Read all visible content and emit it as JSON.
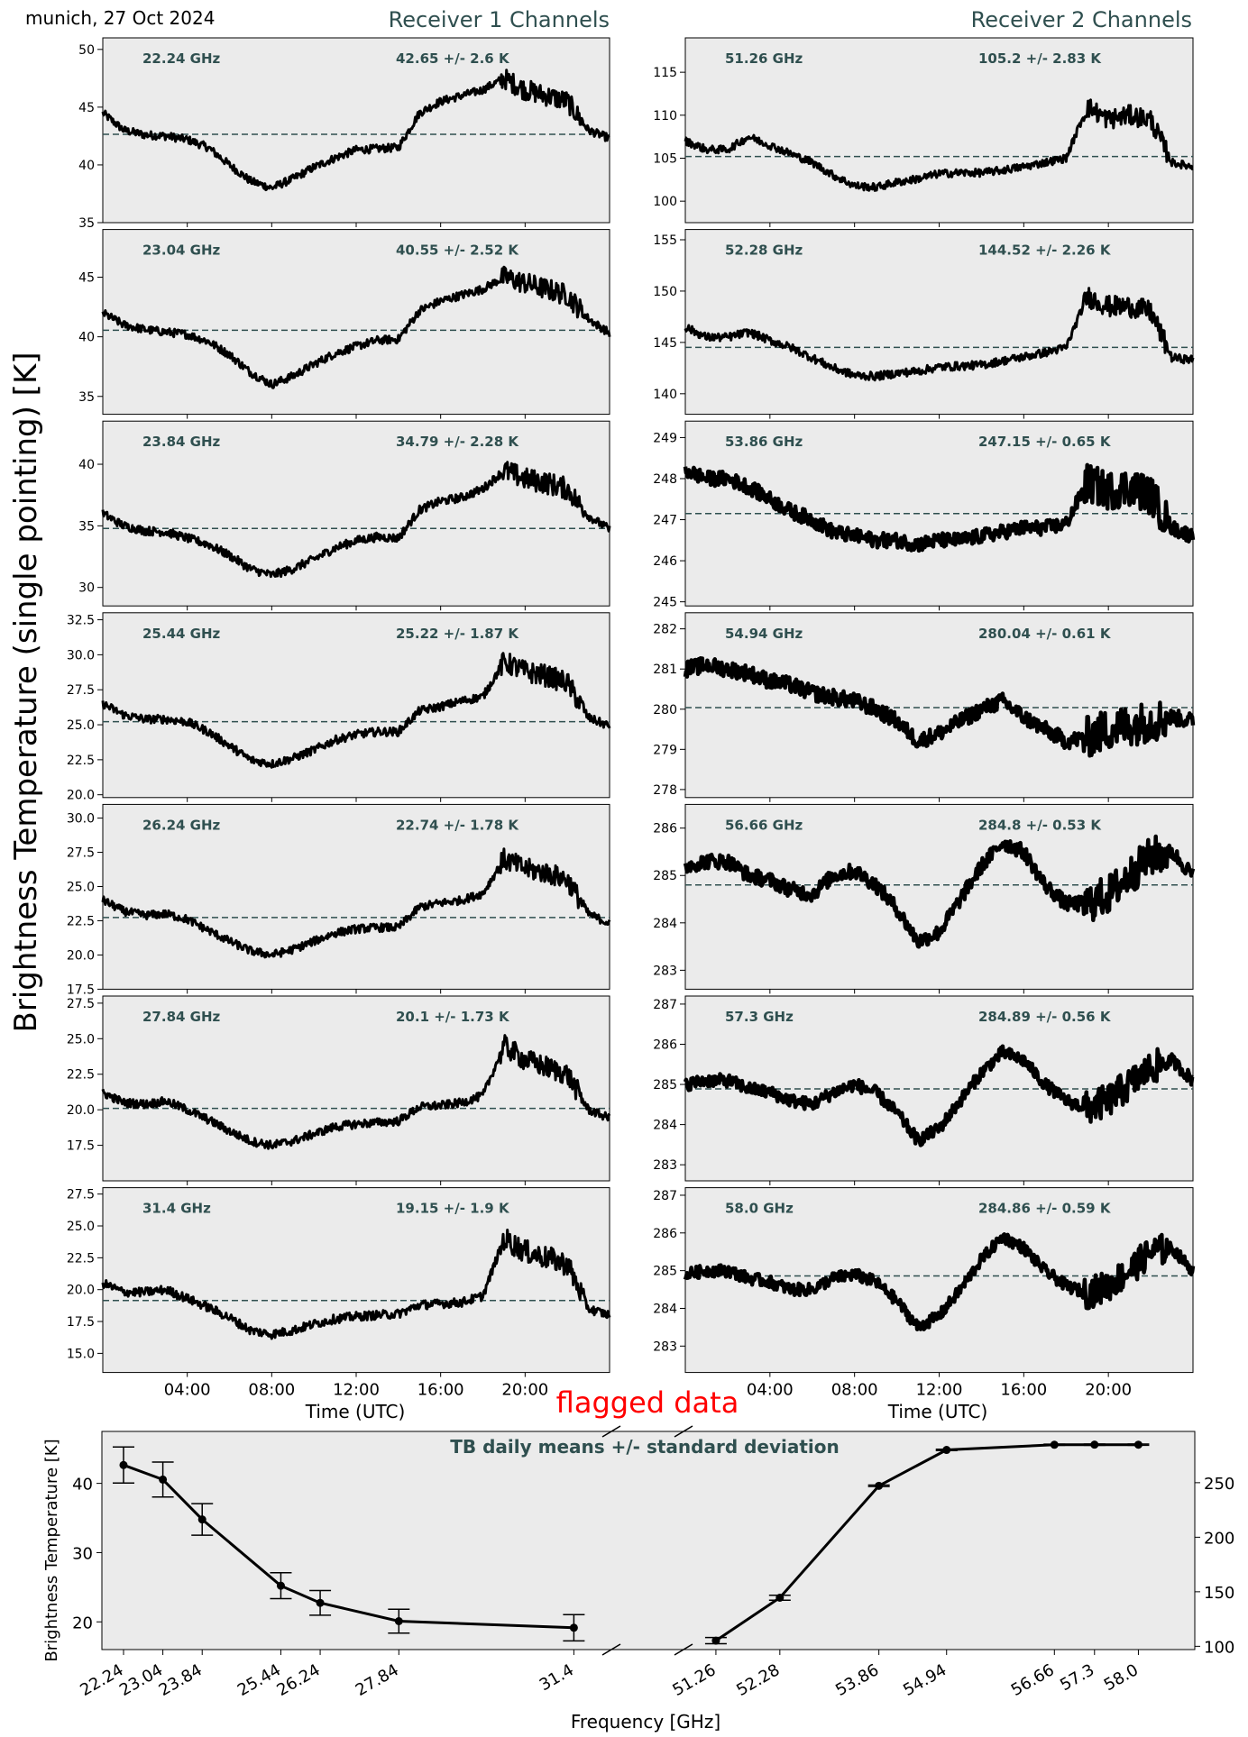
{
  "header": {
    "location_date": "munich, 27 Oct 2024",
    "receiver1_title": "Receiver 1 Channels",
    "receiver2_title": "Receiver 2 Channels"
  },
  "labels": {
    "y_axis_main": "Brightness Temperature (single pointing) [K]",
    "x_axis_time": "Time (UTC)",
    "flagged": "flagged data",
    "summary_title": "TB daily means +/- standard deviation",
    "summary_ylabel": "Brightness Temperature [K]",
    "summary_xlabel": "Frequency [GHz]"
  },
  "colors": {
    "panel_background": "#ebebeb",
    "text_accent": "#2f4f4f",
    "flag": "#ff0000",
    "series": "#000000"
  },
  "chart_data": [
    {
      "type": "line",
      "title": "Receiver 1 Channels",
      "xlabel": "Time (UTC)",
      "ylabel": "Brightness Temperature (single pointing) [K]",
      "x_ticks": [
        "04:00",
        "08:00",
        "12:00",
        "16:00",
        "20:00"
      ],
      "xlim_hours": [
        0,
        24
      ],
      "panels": [
        {
          "freq": "22.24 GHz",
          "stat": "42.65 +/- 2.6 K",
          "mean": 42.65,
          "ylim": [
            35,
            51
          ],
          "yticks": [
            35,
            40,
            45,
            50
          ],
          "ytick_labels": [
            "35",
            "40",
            "45",
            "50"
          ],
          "noise": 0.35,
          "v": [
            44.5,
            43,
            42.6,
            42.5,
            42.2,
            41.5,
            40.0,
            38.6,
            38.0,
            38.8,
            39.8,
            40.6,
            41.3,
            41.4,
            41.5,
            44.5,
            45.5,
            46.0,
            46.5,
            47.5,
            46.5,
            46.0,
            45.5,
            43,
            42.3
          ]
        },
        {
          "freq": "23.04 GHz",
          "stat": "40.55 +/- 2.52 K",
          "mean": 40.55,
          "ylim": [
            33.5,
            49
          ],
          "yticks": [
            35,
            40,
            45
          ],
          "ytick_labels": [
            "35",
            "40",
            "45"
          ],
          "noise": 0.35,
          "v": [
            42,
            41,
            40.6,
            40.4,
            40.2,
            39.6,
            38.5,
            37.0,
            36.0,
            36.7,
            37.7,
            38.6,
            39.2,
            39.7,
            39.8,
            42.2,
            43.0,
            43.5,
            44.0,
            45.0,
            44.5,
            44.0,
            43.5,
            41.5,
            40.3
          ]
        },
        {
          "freq": "23.84 GHz",
          "stat": "34.79 +/- 2.28 K",
          "mean": 34.79,
          "ylim": [
            28.5,
            43.5
          ],
          "yticks": [
            30,
            35,
            40
          ],
          "ytick_labels": [
            "30",
            "35",
            "40"
          ],
          "noise": 0.35,
          "v": [
            36,
            35,
            34.6,
            34.5,
            34.0,
            33.5,
            32.6,
            31.5,
            31.0,
            31.5,
            32.3,
            33.2,
            33.8,
            34.1,
            34.0,
            36.3,
            37.0,
            37.3,
            38.0,
            39.5,
            38.8,
            38.5,
            38.0,
            35.8,
            34.7
          ]
        },
        {
          "freq": "25.44 GHz",
          "stat": "25.22 +/- 1.87 K",
          "mean": 25.22,
          "ylim": [
            19.8,
            33
          ],
          "yticks": [
            20,
            22.5,
            25,
            27.5,
            30,
            32.5
          ],
          "ytick_labels": [
            "20.0",
            "22.5",
            "25.0",
            "27.5",
            "30.0",
            "32.5"
          ],
          "noise": 0.3,
          "v": [
            26.5,
            25.7,
            25.4,
            25.4,
            25.2,
            24.5,
            23.5,
            22.5,
            22.2,
            22.6,
            23.2,
            23.9,
            24.3,
            24.5,
            24.5,
            26.0,
            26.3,
            26.7,
            27.0,
            29.5,
            28.8,
            28.5,
            28.0,
            25.5,
            24.9
          ]
        },
        {
          "freq": "26.24 GHz",
          "stat": "22.74 +/- 1.78 K",
          "mean": 22.74,
          "ylim": [
            17.5,
            31
          ],
          "yticks": [
            17.5,
            20,
            22.5,
            25,
            27.5,
            30
          ],
          "ytick_labels": [
            "17.5",
            "20.0",
            "22.5",
            "25.0",
            "27.5",
            "30.0"
          ],
          "noise": 0.3,
          "v": [
            24,
            23.2,
            22.9,
            23.0,
            22.6,
            21.8,
            21.0,
            20.3,
            20.0,
            20.4,
            21.0,
            21.6,
            21.9,
            22.0,
            22.0,
            23.5,
            23.8,
            24.0,
            24.5,
            27.0,
            26.3,
            26.0,
            25.5,
            23.0,
            22.3
          ]
        },
        {
          "freq": "27.84 GHz",
          "stat": "20.1 +/- 1.73 K",
          "mean": 20.1,
          "ylim": [
            15,
            28
          ],
          "yticks": [
            17.5,
            20,
            22.5,
            25,
            27.5
          ],
          "ytick_labels": [
            "17.5",
            "20.0",
            "22.5",
            "25.0",
            "27.5"
          ],
          "noise": 0.3,
          "v": [
            21.2,
            20.5,
            20.4,
            20.6,
            20.0,
            19.3,
            18.5,
            17.8,
            17.5,
            17.8,
            18.3,
            18.8,
            19.0,
            19.1,
            19.2,
            20.2,
            20.3,
            20.5,
            21.0,
            24.5,
            23.5,
            23.0,
            22.5,
            20.0,
            19.4
          ]
        },
        {
          "freq": "31.4 GHz",
          "stat": "19.15 +/- 1.9 K",
          "mean": 19.15,
          "ylim": [
            13.5,
            28
          ],
          "yticks": [
            15,
            17.5,
            20,
            22.5,
            25,
            27.5
          ],
          "ytick_labels": [
            "15.0",
            "17.5",
            "20.0",
            "22.5",
            "25.0",
            "27.5"
          ],
          "noise": 0.35,
          "v": [
            20.5,
            19.8,
            19.8,
            20.0,
            19.3,
            18.6,
            17.8,
            16.8,
            16.5,
            16.8,
            17.3,
            17.7,
            17.9,
            18.0,
            18.1,
            18.8,
            18.9,
            19.0,
            19.5,
            24.0,
            23.0,
            22.5,
            22.0,
            18.5,
            18.0
          ]
        }
      ]
    },
    {
      "type": "line",
      "title": "Receiver 2 Channels",
      "xlabel": "Time (UTC)",
      "x_ticks": [
        "04:00",
        "08:00",
        "12:00",
        "16:00",
        "20:00"
      ],
      "xlim_hours": [
        0,
        24
      ],
      "panels": [
        {
          "freq": "51.26 GHz",
          "stat": "105.2 +/- 2.83 K",
          "mean": 105.2,
          "ylim": [
            97.5,
            119
          ],
          "yticks": [
            100,
            105,
            110,
            115
          ],
          "ytick_labels": [
            "100",
            "105",
            "110",
            "115"
          ],
          "noise": 0.45,
          "v": [
            107,
            106,
            106,
            107.5,
            106.5,
            105.5,
            104.5,
            103.0,
            101.8,
            101.6,
            102.2,
            102.6,
            103.2,
            103.3,
            103.3,
            103.6,
            104.0,
            104.5,
            105.0,
            111.0,
            109.5,
            110.0,
            109.5,
            104.5,
            104.0
          ]
        },
        {
          "freq": "52.28 GHz",
          "stat": "144.52 +/- 2.26 K",
          "mean": 144.52,
          "ylim": [
            138,
            156
          ],
          "yticks": [
            140,
            145,
            150,
            155
          ],
          "ytick_labels": [
            "140",
            "145",
            "150",
            "155"
          ],
          "noise": 0.4,
          "v": [
            146.5,
            145.5,
            145.5,
            146.0,
            145.2,
            144.5,
            143.5,
            142.5,
            141.8,
            141.7,
            142.0,
            142.2,
            142.6,
            142.7,
            142.8,
            143.2,
            143.6,
            144.0,
            144.5,
            149.5,
            148.5,
            148.5,
            148.0,
            143.5,
            143.3
          ]
        },
        {
          "freq": "53.86 GHz",
          "stat": "247.15 +/- 0.65 K",
          "mean": 247.15,
          "ylim": [
            244.9,
            249.4
          ],
          "yticks": [
            245,
            246,
            247,
            248,
            249
          ],
          "ytick_labels": [
            "245",
            "246",
            "247",
            "248",
            "249"
          ],
          "noise": 0.18,
          "v": [
            248.2,
            248.0,
            248.0,
            247.8,
            247.5,
            247.2,
            247.0,
            246.7,
            246.6,
            246.5,
            246.5,
            246.4,
            246.5,
            246.5,
            246.6,
            246.7,
            246.8,
            246.8,
            246.9,
            247.9,
            247.7,
            247.8,
            247.6,
            246.8,
            246.6
          ]
        },
        {
          "freq": "54.94 GHz",
          "stat": "280.04 +/- 0.61 K",
          "mean": 280.04,
          "ylim": [
            277.8,
            282.4
          ],
          "yticks": [
            278,
            279,
            280,
            281,
            282
          ],
          "ytick_labels": [
            "278",
            "279",
            "280",
            "281",
            "282"
          ],
          "noise": 0.2,
          "v": [
            281.0,
            281.1,
            281.0,
            280.9,
            280.7,
            280.6,
            280.4,
            280.3,
            280.2,
            280.0,
            279.7,
            279.2,
            279.4,
            279.7,
            280.0,
            280.2,
            279.8,
            279.5,
            279.2,
            279.3,
            279.5,
            279.6,
            279.7,
            279.8,
            279.7
          ]
        },
        {
          "freq": "56.66 GHz",
          "stat": "284.8 +/- 0.53 K",
          "mean": 284.8,
          "ylim": [
            282.6,
            286.5
          ],
          "yticks": [
            283,
            284,
            285,
            286
          ],
          "ytick_labels": [
            "283",
            "284",
            "285",
            "286"
          ],
          "noise": 0.16,
          "v": [
            285.2,
            285.3,
            285.3,
            285.0,
            284.9,
            284.7,
            284.6,
            285.0,
            285.1,
            284.8,
            284.3,
            283.6,
            283.8,
            284.5,
            285.2,
            285.7,
            285.5,
            284.8,
            284.4,
            284.4,
            284.6,
            285.0,
            285.4,
            285.5,
            285.0
          ]
        },
        {
          "freq": "57.3 GHz",
          "stat": "284.89 +/- 0.56 K",
          "mean": 284.89,
          "ylim": [
            282.6,
            287.2
          ],
          "yticks": [
            283,
            284,
            285,
            286,
            287
          ],
          "ytick_labels": [
            "283",
            "284",
            "285",
            "286",
            "287"
          ],
          "noise": 0.16,
          "v": [
            285.0,
            285.1,
            285.1,
            284.9,
            284.8,
            284.6,
            284.5,
            284.8,
            285.0,
            284.8,
            284.3,
            283.6,
            283.9,
            284.6,
            285.3,
            285.8,
            285.6,
            285.0,
            284.6,
            284.4,
            284.6,
            285.0,
            285.4,
            285.6,
            285.1
          ]
        },
        {
          "freq": "58.0 GHz",
          "stat": "284.86 +/- 0.59 K",
          "mean": 284.86,
          "ylim": [
            282.3,
            287.2
          ],
          "yticks": [
            283,
            284,
            285,
            286,
            287
          ],
          "ytick_labels": [
            "283",
            "284",
            "285",
            "286",
            "287"
          ],
          "noise": 0.16,
          "v": [
            284.9,
            285.0,
            285.0,
            284.8,
            284.7,
            284.5,
            284.5,
            284.8,
            284.9,
            284.7,
            284.2,
            283.5,
            283.8,
            284.5,
            285.3,
            285.9,
            285.6,
            285.0,
            284.6,
            284.4,
            284.6,
            285.0,
            285.5,
            285.6,
            285.0
          ]
        }
      ]
    },
    {
      "type": "line",
      "title": "TB daily means +/- standard deviation",
      "xlabel": "Frequency [GHz]",
      "ylabel": "Brightness Temperature [K]",
      "left": {
        "freqs": [
          22.24,
          23.04,
          23.84,
          25.44,
          26.24,
          27.84,
          31.4
        ],
        "tick_labels": [
          "22.24",
          "23.04",
          "23.84",
          "25.44",
          "26.24",
          "27.84",
          "31.4"
        ],
        "means": [
          42.65,
          40.55,
          34.79,
          25.22,
          22.74,
          20.1,
          19.15
        ],
        "stds": [
          2.6,
          2.52,
          2.28,
          1.87,
          1.78,
          1.73,
          1.9
        ],
        "xlim": [
          21.8,
          32.2
        ],
        "ylim": [
          16,
          47.5
        ],
        "yticks": [
          20,
          30,
          40
        ],
        "ytick_labels": [
          "20",
          "30",
          "40"
        ]
      },
      "right": {
        "freqs": [
          51.26,
          52.28,
          53.86,
          54.94,
          56.66,
          57.3,
          58.0
        ],
        "tick_labels": [
          "51.26",
          "52.28",
          "53.86",
          "54.94",
          "56.66",
          "57.3",
          "58.0"
        ],
        "means": [
          105.2,
          144.52,
          247.15,
          280.04,
          284.8,
          284.89,
          284.86
        ],
        "stds": [
          2.83,
          2.26,
          0.65,
          0.61,
          0.53,
          0.56,
          0.59
        ],
        "xlim": [
          50.7,
          58.9
        ],
        "ylim": [
          97,
          297
        ],
        "yticks": [
          100,
          150,
          200,
          250
        ],
        "ytick_labels": [
          "100",
          "150",
          "200",
          "250"
        ]
      }
    }
  ]
}
